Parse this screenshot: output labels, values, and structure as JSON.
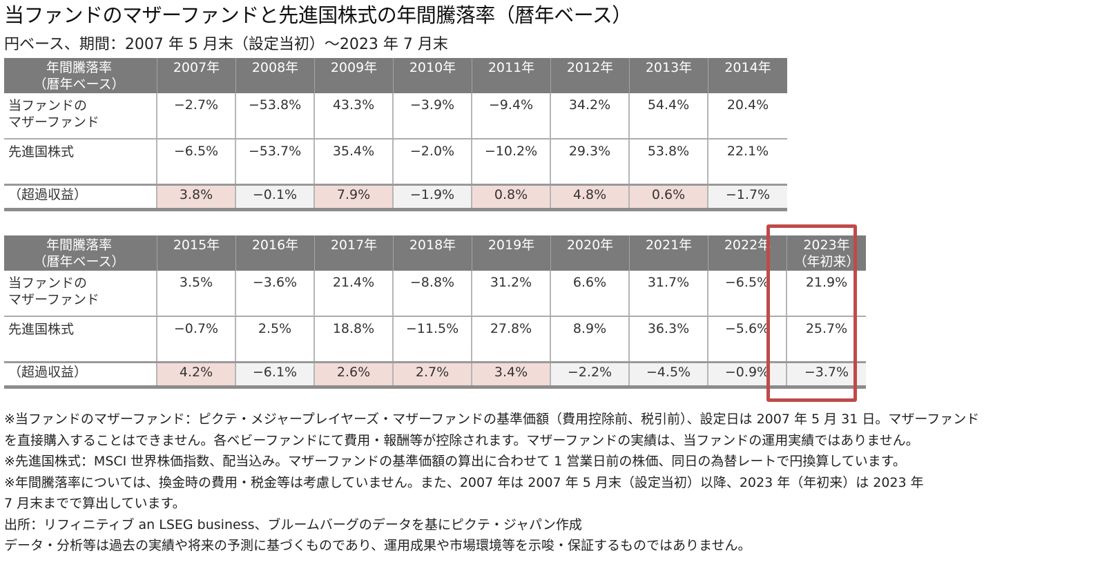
{
  "title": "当ファンドのマザーファンドと先進国株式の年間騰落率（暦年ベース）",
  "subtitle": "円ベース、期間：2007 年 5 月末（設定当初）〜2023 年 7 月末",
  "row_labels": {
    "header_line1": "年間騰落率",
    "header_line2": "（暦年ベース）",
    "fund_line1": "当ファンドの",
    "fund_line2": "マザーファンド",
    "developed": "先進国株式",
    "excess": "（超過収益）"
  },
  "table1": {
    "years": [
      {
        "line1": "2007年",
        "line2": ""
      },
      {
        "line1": "2008年",
        "line2": ""
      },
      {
        "line1": "2009年",
        "line2": ""
      },
      {
        "line1": "2010年",
        "line2": ""
      },
      {
        "line1": "2011年",
        "line2": ""
      },
      {
        "line1": "2012年",
        "line2": ""
      },
      {
        "line1": "2013年",
        "line2": ""
      },
      {
        "line1": "2014年",
        "line2": ""
      }
    ],
    "fund": [
      "−2.7%",
      "−53.8%",
      "43.3%",
      "−3.9%",
      "−9.4%",
      "34.2%",
      "54.4%",
      "20.4%"
    ],
    "developed": [
      "−6.5%",
      "−53.7%",
      "35.4%",
      "−2.0%",
      "−10.2%",
      "29.3%",
      "53.8%",
      "22.1%"
    ],
    "excess": [
      "3.8%",
      "−0.1%",
      "7.9%",
      "−1.9%",
      "0.8%",
      "4.8%",
      "0.6%",
      "−1.7%"
    ],
    "excess_sign": [
      "pos",
      "neg",
      "pos",
      "neg",
      "pos",
      "pos",
      "pos",
      "neg"
    ]
  },
  "table2": {
    "years": [
      {
        "line1": "2015年",
        "line2": ""
      },
      {
        "line1": "2016年",
        "line2": ""
      },
      {
        "line1": "2017年",
        "line2": ""
      },
      {
        "line1": "2018年",
        "line2": ""
      },
      {
        "line1": "2019年",
        "line2": ""
      },
      {
        "line1": "2020年",
        "line2": ""
      },
      {
        "line1": "2021年",
        "line2": ""
      },
      {
        "line1": "2022年",
        "line2": ""
      },
      {
        "line1": "2023年",
        "line2": "（年初来）"
      }
    ],
    "fund": [
      "3.5%",
      "−3.6%",
      "21.4%",
      "−8.8%",
      "31.2%",
      "6.6%",
      "31.7%",
      "−6.5%",
      "21.9%"
    ],
    "developed": [
      "−0.7%",
      "2.5%",
      "18.8%",
      "−11.5%",
      "27.8%",
      "8.9%",
      "36.3%",
      "−5.6%",
      "25.7%"
    ],
    "excess": [
      "4.2%",
      "−6.1%",
      "2.6%",
      "2.7%",
      "3.4%",
      "−2.2%",
      "−4.5%",
      "−0.9%",
      "−3.7%"
    ],
    "excess_sign": [
      "pos",
      "neg",
      "pos",
      "pos",
      "pos",
      "neg",
      "neg",
      "neg",
      "neg"
    ]
  },
  "colors": {
    "header_bg": "#7b7b7b",
    "positive_excess_bg": "#f2dcd8",
    "negative_excess_bg": "#f2f2f2",
    "highlight_border": "#bf4a48"
  },
  "notes": [
    "※当ファンドのマザーファンド：ピクテ・メジャープレイヤーズ・マザーファンドの基準価額（費用控除前、税引前）、設定日は 2007 年 5 月 31 日。マザーファンド",
    "を直接購入することはできません。各ベビーファンドにて費用・報酬等が控除されます。マザーファンドの実績は、当ファンドの運用実績ではありません。",
    "※先進国株式：MSCI 世界株価指数、配当込み。マザーファンドの基準価額の算出に合わせて 1 営業日前の株価、同日の為替レートで円換算しています。",
    "※年間騰落率については、換金時の費用・税金等は考慮していません。また、2007 年は 2007 年 5 月末（設定当初）以降、2023 年（年初来）は 2023 年",
    "7 月末までで算出しています。",
    "出所：リフィニティブ an LSEG business、ブルームバーグのデータを基にピクテ・ジャパン作成",
    "データ・分析等は過去の実績や将来の予測に基づくものであり、運用成果や市場環境等を示唆・保証するものではありません。"
  ]
}
